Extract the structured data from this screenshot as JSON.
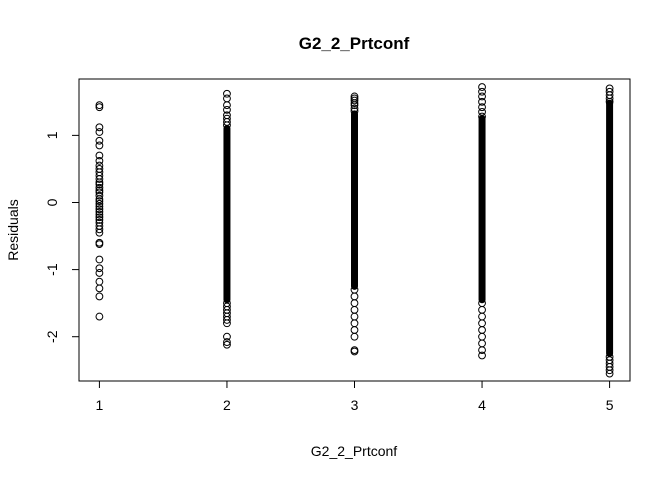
{
  "chart_data": {
    "type": "scatter",
    "title": "G2_2_Prtconf",
    "xlabel": "G2_2_Prtconf",
    "ylabel": "Residuals",
    "xlim": [
      0.84,
      5.16
    ],
    "ylim": [
      -2.66,
      1.84
    ],
    "x_ticks": [
      1,
      2,
      3,
      4,
      5
    ],
    "x_tick_labels": [
      "1",
      "2",
      "3",
      "4",
      "5"
    ],
    "y_ticks": [
      -2,
      -1,
      0,
      1
    ],
    "y_tick_labels": [
      "-2",
      "-1",
      "0",
      "1"
    ],
    "grid": false,
    "legend": "none",
    "marker": "open-circle",
    "series": [
      {
        "x": 1,
        "residuals": [
          1.45,
          1.42,
          1.12,
          1.05,
          0.92,
          0.85,
          0.7,
          0.62,
          0.55,
          0.5,
          0.45,
          0.4,
          0.35,
          0.3,
          0.27,
          0.22,
          0.18,
          0.15,
          0.1,
          0.05,
          0.02,
          -0.02,
          -0.06,
          -0.1,
          -0.14,
          -0.18,
          -0.22,
          -0.26,
          -0.3,
          -0.35,
          -0.4,
          -0.45,
          -0.6,
          -0.62,
          -0.85,
          -0.98,
          -1.05,
          -1.18,
          -1.28,
          -1.4,
          -1.7
        ],
        "dense": []
      },
      {
        "x": 2,
        "residuals": [
          1.62,
          1.55,
          1.45,
          1.38,
          1.3,
          1.25,
          1.2,
          1.15,
          -1.5,
          -1.55,
          -1.6,
          -1.65,
          -1.7,
          -1.75,
          -1.8,
          -2.0,
          -2.08,
          -2.12
        ],
        "dense": [
          -1.45,
          1.1
        ]
      },
      {
        "x": 3,
        "residuals": [
          1.58,
          1.55,
          1.52,
          1.48,
          1.45,
          1.4,
          1.36,
          -1.3,
          -1.4,
          -1.5,
          -1.6,
          -1.7,
          -1.8,
          -1.9,
          -2.0,
          -2.2,
          -2.22
        ],
        "dense": [
          -1.25,
          1.32
        ]
      },
      {
        "x": 4,
        "residuals": [
          1.72,
          1.65,
          1.58,
          1.5,
          1.42,
          1.35,
          1.28,
          -1.5,
          -1.6,
          -1.7,
          -1.8,
          -1.9,
          -2.0,
          -2.1,
          -2.2,
          -2.28
        ],
        "dense": [
          -1.45,
          1.25
        ]
      },
      {
        "x": 5,
        "residuals": [
          1.7,
          1.65,
          1.6,
          1.55,
          1.5,
          -2.3,
          -2.35,
          -2.4,
          -2.45,
          -2.5,
          -2.55
        ],
        "dense": [
          -2.25,
          1.48
        ]
      }
    ],
    "colors": {
      "points": "#000000",
      "frame": "#000000",
      "background": "#ffffff"
    }
  }
}
